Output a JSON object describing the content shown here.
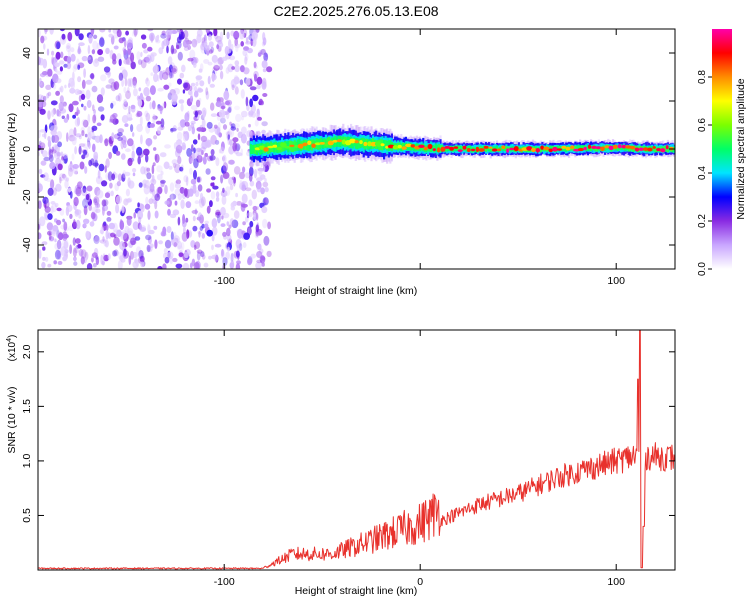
{
  "title": "C2E2.2025.276.05.13.E08",
  "chart_data": [
    {
      "type": "heatmap",
      "name": "spectrogram",
      "xlabel": "Height of straight line (km)",
      "ylabel": "Frequency (Hz)",
      "xlim": [
        -195,
        130
      ],
      "ylim": [
        -50,
        50
      ],
      "xticks": [
        -100,
        0,
        100
      ],
      "xtick_labels": [
        "-100",
        "",
        "100"
      ],
      "yticks": [
        -40,
        -20,
        0,
        20,
        40
      ],
      "ytick_labels": [
        "-40",
        "-20",
        "0",
        "20",
        "40"
      ],
      "noise_region_x": [
        -195,
        -77
      ],
      "signal_band_center_hz": [
        {
          "x": -87,
          "hz": 0
        },
        {
          "x": -70,
          "hz": 1
        },
        {
          "x": -55,
          "hz": 2
        },
        {
          "x": -40,
          "hz": 3
        },
        {
          "x": -25,
          "hz": 2
        },
        {
          "x": -10,
          "hz": 1
        },
        {
          "x": 0,
          "hz": 0.5
        },
        {
          "x": 20,
          "hz": 0
        },
        {
          "x": 60,
          "hz": 0
        },
        {
          "x": 100,
          "hz": 0.5
        },
        {
          "x": 112,
          "hz": 0
        },
        {
          "x": 130,
          "hz": 0
        }
      ],
      "colorbar": {
        "label": "Normalized spectral amplitude",
        "range": [
          0,
          1
        ],
        "ticks": [
          0.0,
          0.2,
          0.4,
          0.6,
          0.8
        ],
        "tick_labels": [
          "0.0",
          "0.2",
          "0.4",
          "0.6",
          "0.8"
        ],
        "colors": [
          "#ffffff",
          "#c9a6ff",
          "#8a2be2",
          "#0000ff",
          "#00e5ff",
          "#00ff66",
          "#7cff00",
          "#ffff00",
          "#ff8c00",
          "#ff0000",
          "#ff00aa"
        ]
      }
    },
    {
      "type": "line",
      "name": "snr",
      "xlabel": "Height of straight line (km)",
      "ylabel": "SNR (10 * v/v)",
      "y_multiplier": "(x10",
      "y_multiplier_exp": "4",
      "y_multiplier_close": ")",
      "xlim": [
        -195,
        130
      ],
      "ylim": [
        0,
        2.2
      ],
      "xticks": [
        -100,
        0,
        100
      ],
      "xtick_labels": [
        "-100",
        "0",
        "100"
      ],
      "yticks": [
        0.5,
        1.0,
        1.5,
        2.0
      ],
      "ytick_labels": [
        "0.5",
        "1.0",
        "1.5",
        "2.0"
      ],
      "color": "#e8312c",
      "trend": [
        {
          "x": -195,
          "y": 0.015
        },
        {
          "x": -80,
          "y": 0.015
        },
        {
          "x": -65,
          "y": 0.12
        },
        {
          "x": -45,
          "y": 0.12
        },
        {
          "x": -25,
          "y": 0.22
        },
        {
          "x": -10,
          "y": 0.3
        },
        {
          "x": 0,
          "y": 0.35
        },
        {
          "x": 10,
          "y": 0.45
        },
        {
          "x": 30,
          "y": 0.6
        },
        {
          "x": 50,
          "y": 0.7
        },
        {
          "x": 70,
          "y": 0.85
        },
        {
          "x": 90,
          "y": 0.95
        },
        {
          "x": 110,
          "y": 1.05
        },
        {
          "x": 130,
          "y": 1.03
        }
      ],
      "spikes": [
        {
          "x": 111,
          "y": 1.75
        },
        {
          "x": 112,
          "y": 2.2
        },
        {
          "x": 113,
          "y": 0.02
        },
        {
          "x": 114,
          "y": 0.4
        }
      ]
    }
  ]
}
